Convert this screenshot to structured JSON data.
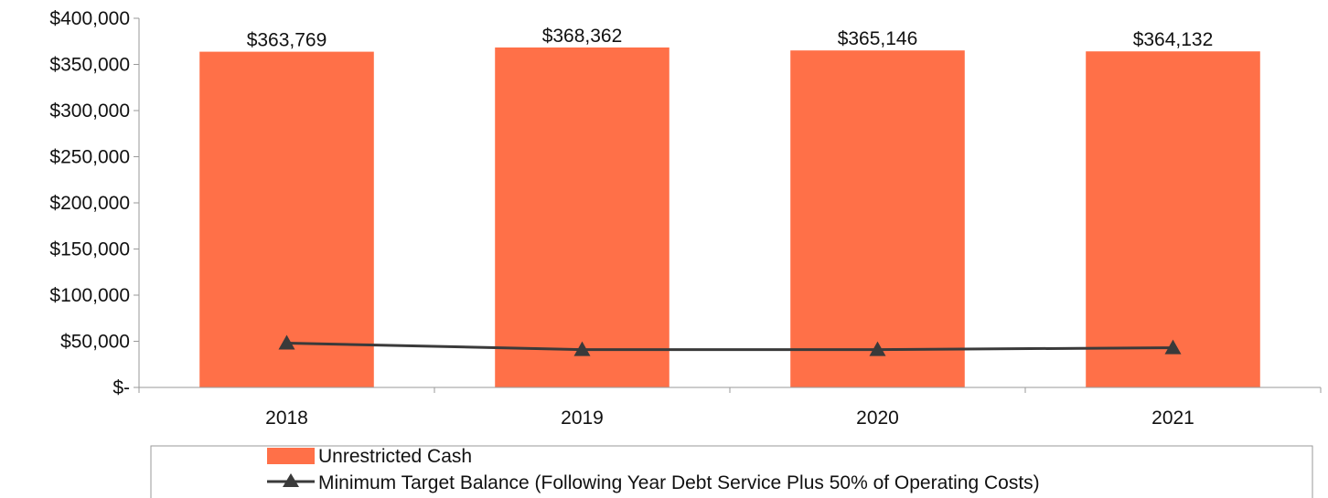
{
  "chart_data": {
    "type": "bar",
    "categories": [
      "2018",
      "2019",
      "2020",
      "2021"
    ],
    "series": [
      {
        "name": "Unrestricted Cash",
        "kind": "bar",
        "color": "#FF7048",
        "values": [
          363769,
          368362,
          365146,
          364132
        ],
        "data_labels": [
          "$363,769",
          "$368,362",
          "$365,146",
          "$364,132"
        ]
      },
      {
        "name": "Minimum Target Balance (Following Year Debt Service Plus 50% of Operating Costs)",
        "kind": "line",
        "color": "#3a3a3a",
        "marker": "triangle",
        "values": [
          48000,
          41000,
          41000,
          43000
        ]
      }
    ],
    "ylim": [
      0,
      400000
    ],
    "yticks": [
      0,
      50000,
      100000,
      150000,
      200000,
      250000,
      300000,
      350000,
      400000
    ],
    "ytick_labels": [
      "$-",
      "$50,000",
      "$100,000",
      "$150,000",
      "$200,000",
      "$250,000",
      "$300,000",
      "$350,000",
      "$400,000"
    ],
    "grid": false,
    "legend_position": "bottom",
    "title": "",
    "xlabel": "",
    "ylabel": ""
  }
}
